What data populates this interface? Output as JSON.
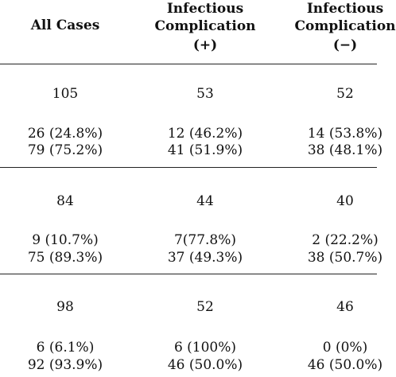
{
  "table": {
    "headers": {
      "col1": "All Cases",
      "col2": [
        "Infectious",
        "Complication",
        "(+)"
      ],
      "col3": [
        "Infectious",
        "Complication",
        "(−)"
      ]
    },
    "groups": [
      {
        "total": [
          "105",
          "53",
          "52"
        ],
        "row1": [
          "26 (24.8%)",
          "12 (46.2%)",
          "14 (53.8%)"
        ],
        "row2": [
          "79 (75.2%)",
          "41 (51.9%)",
          "38 (48.1%)"
        ]
      },
      {
        "total": [
          "84",
          "44",
          "40"
        ],
        "row1": [
          "9 (10.7%)",
          "7(77.8%)",
          "2 (22.2%)"
        ],
        "row2": [
          "75 (89.3%)",
          "37 (49.3%)",
          "38 (50.7%)"
        ]
      },
      {
        "total": [
          "98",
          "52",
          "46"
        ],
        "row1": [
          "6 (6.1%)",
          "6 (100%)",
          "0 (0%)"
        ],
        "row2": [
          "92 (93.9%)",
          "46 (50.0%)",
          "46 (50.0%)"
        ]
      }
    ]
  }
}
